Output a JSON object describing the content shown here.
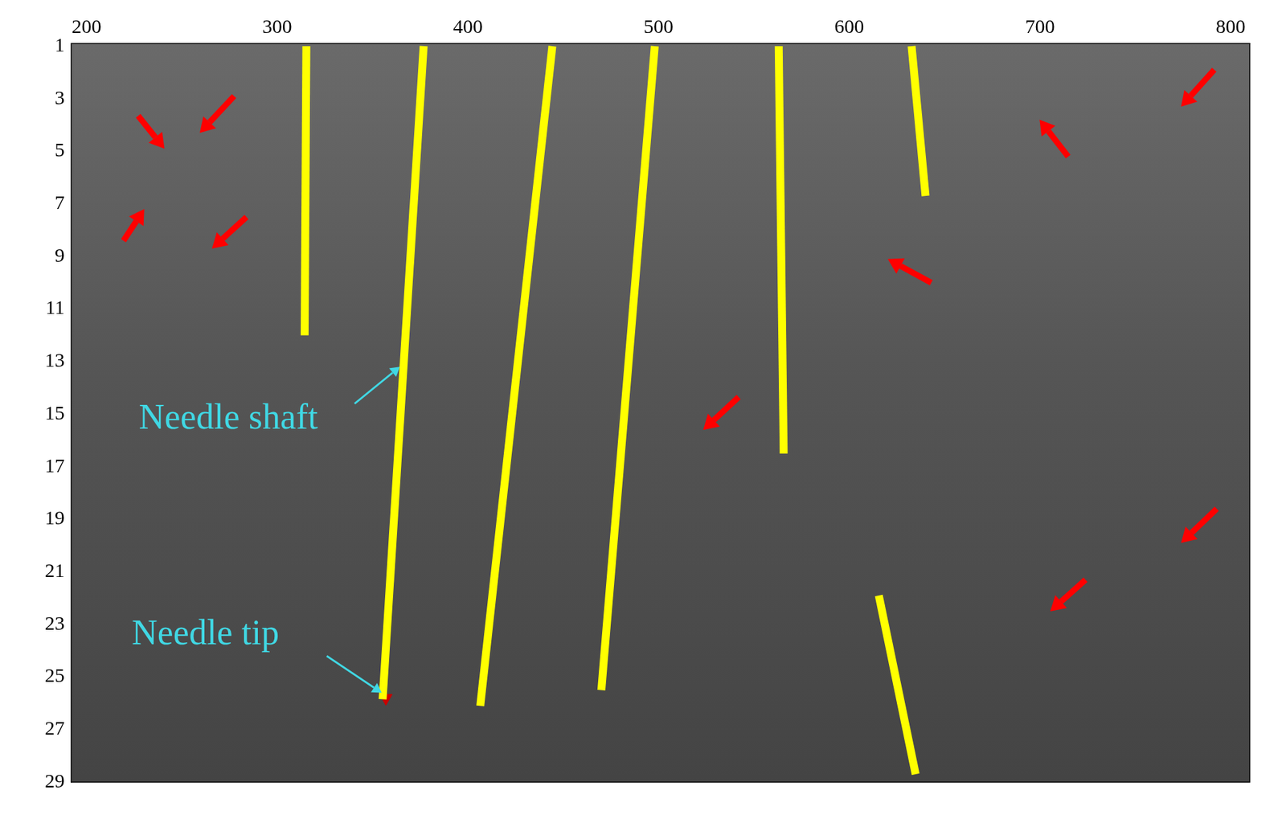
{
  "chart_data": {
    "type": "line",
    "xlim": [
      192,
      810
    ],
    "xticks": [
      200,
      300,
      400,
      500,
      600,
      700,
      800
    ],
    "ylim": [
      0.9,
      29
    ],
    "yticks": [
      1,
      3,
      5,
      7,
      9,
      11,
      13,
      15,
      17,
      19,
      21,
      23,
      25,
      27,
      29
    ],
    "grid": false,
    "legend": false,
    "series": [
      {
        "color": "#ffff00",
        "x": [
          315.3,
          314.4
        ],
        "values": [
          1,
          12.0
        ]
      },
      {
        "color": "#ffff00",
        "x": [
          376.8,
          355.3
        ],
        "values": [
          1,
          25.85
        ]
      },
      {
        "color": "#ffff00",
        "x": [
          444.3,
          406.5
        ],
        "values": [
          1,
          26.1
        ]
      },
      {
        "color": "#ffff00",
        "x": [
          498,
          470
        ],
        "values": [
          1,
          25.5
        ]
      },
      {
        "color": "#ffff00",
        "x": [
          563,
          565.6
        ],
        "values": [
          1,
          16.5
        ]
      },
      {
        "color": "#ffff00",
        "x": [
          632.7,
          640
        ],
        "values": [
          1,
          6.7
        ]
      },
      {
        "color": "#ffff00",
        "x": [
          615.5,
          634.8
        ],
        "values": [
          21.9,
          28.7
        ]
      }
    ],
    "markers": [
      {
        "x": 357,
        "y": 25.8,
        "color": "#cc0000",
        "marker": "triangle"
      }
    ],
    "arrows": {
      "color": "#ff0000",
      "items": [
        {
          "from": [
            227.1,
            3.65
          ],
          "to": [
            240.9,
            4.9
          ]
        },
        {
          "from": [
            277.4,
            2.9
          ],
          "to": [
            259.4,
            4.3
          ]
        },
        {
          "from": [
            219.4,
            8.4
          ],
          "to": [
            230.3,
            7.2
          ]
        },
        {
          "from": [
            283.9,
            7.5
          ],
          "to": [
            265.8,
            8.7
          ]
        },
        {
          "from": [
            791.4,
            1.9
          ],
          "to": [
            774,
            3.3
          ]
        },
        {
          "from": [
            714.8,
            5.2
          ],
          "to": [
            699.8,
            3.8
          ]
        },
        {
          "from": [
            643,
            10.0
          ],
          "to": [
            620.2,
            9.1
          ]
        },
        {
          "from": [
            542,
            14.35
          ],
          "to": [
            523.4,
            15.6
          ]
        },
        {
          "from": [
            792.7,
            18.6
          ],
          "to": [
            774,
            19.9
          ]
        },
        {
          "from": [
            723.9,
            21.3
          ],
          "to": [
            705.4,
            22.5
          ]
        }
      ]
    },
    "annotations": [
      {
        "text": "Needle shaft",
        "x": 274.4,
        "y": 15.2,
        "color": "#40d8e4",
        "arrow_from": [
          340.6,
          14.6
        ],
        "arrow_to": [
          364.3,
          13.2
        ]
      },
      {
        "text": "Needle tip",
        "x": 262.4,
        "y": 23.4,
        "color": "#40d8e4",
        "arrow_from": [
          326,
          24.2
        ],
        "arrow_to": [
          354.8,
          25.6
        ]
      }
    ]
  }
}
